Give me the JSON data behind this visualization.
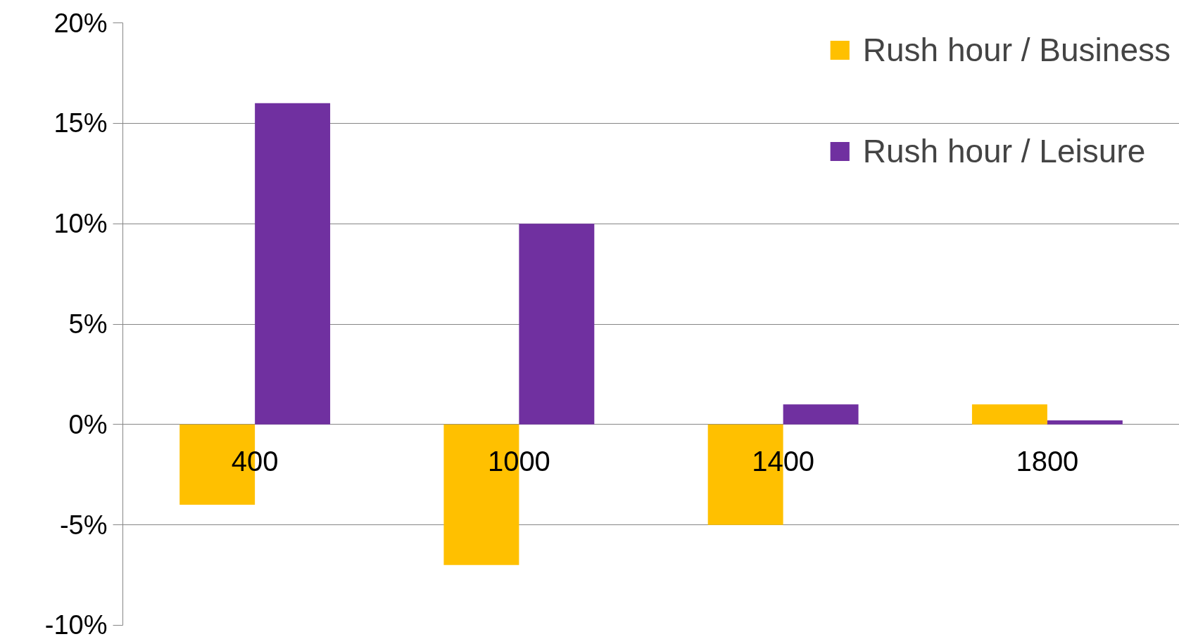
{
  "chart_data": {
    "type": "bar",
    "categories": [
      "400",
      "1000",
      "1400",
      "1800"
    ],
    "series": [
      {
        "name": "Rush hour / Business",
        "color": "#ffc000",
        "values": [
          -4,
          -7,
          -5,
          1
        ]
      },
      {
        "name": "Rush hour / Leisure",
        "color": "#7030a0",
        "values": [
          16,
          10,
          1,
          0.2
        ]
      }
    ],
    "ylim": [
      -10,
      20
    ],
    "yticks": [
      {
        "value": -10,
        "label": "-10%"
      },
      {
        "value": -5,
        "label": "-5%"
      },
      {
        "value": 0,
        "label": "0%"
      },
      {
        "value": 5,
        "label": "5%"
      },
      {
        "value": 10,
        "label": "10%"
      },
      {
        "value": 15,
        "label": "15%"
      },
      {
        "value": 20,
        "label": "20%"
      }
    ],
    "grid": "y",
    "legend": "top right"
  }
}
